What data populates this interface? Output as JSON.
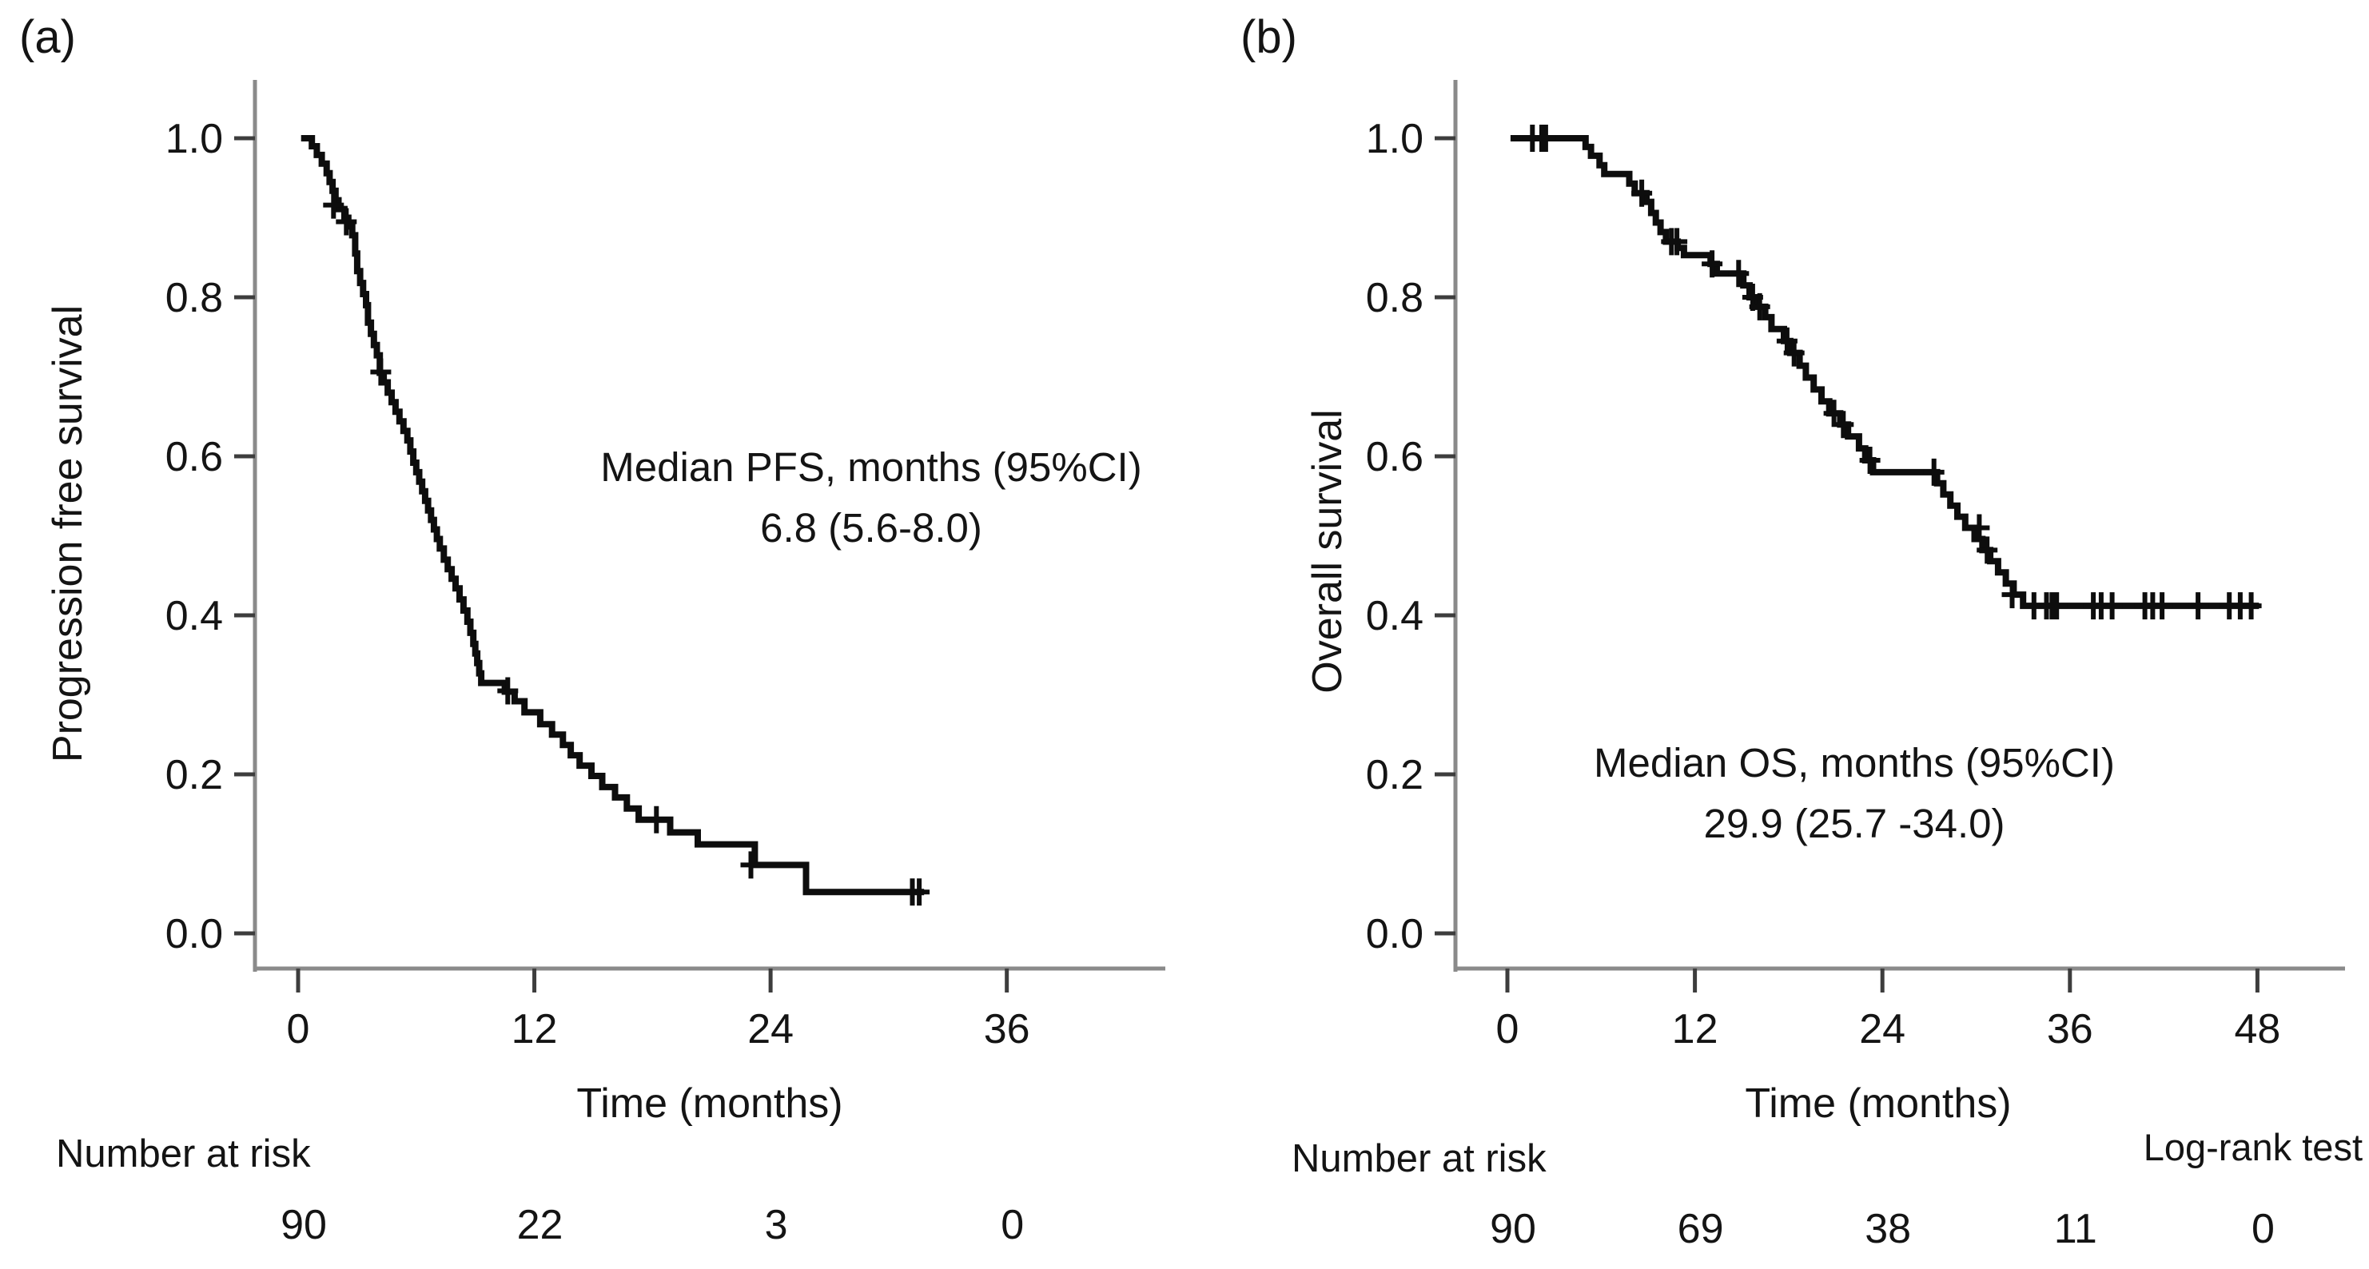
{
  "figure": {
    "background": "#ffffff",
    "text_color": "#141414",
    "curve_color": "#0d0d0d",
    "axis_color": "#8a8a8a",
    "tick_color": "#3d3d3d"
  },
  "chart_data": [
    {
      "type": "line",
      "subtype": "kaplan-meier-step",
      "panel": "a",
      "panel_label": "(a)",
      "ylabel": "Progression free survival",
      "xlabel": "Time (months)",
      "xlim": [
        0,
        44
      ],
      "ylim": [
        0.0,
        1.0
      ],
      "xticks": [
        0,
        12,
        24,
        36
      ],
      "yticks": [
        1.0,
        0.8,
        0.6,
        0.4,
        0.2,
        0.0
      ],
      "grid": false,
      "legend": "none",
      "annotation": {
        "line1": "Median PFS, months (95%CI)",
        "line2": "6.8 (5.6-8.0)"
      },
      "median_months": 6.8,
      "ci_95": "5.6-8.0",
      "number_at_risk": {
        "label": "Number at risk",
        "times": [
          0,
          12,
          24,
          36
        ],
        "counts": [
          90,
          22,
          3,
          0
        ]
      },
      "end_time": 31.8,
      "steps": [
        [
          0.15,
          1.0
        ],
        [
          0.7,
          0.99
        ],
        [
          0.95,
          0.979
        ],
        [
          1.2,
          0.968
        ],
        [
          1.45,
          0.956
        ],
        [
          1.6,
          0.945
        ],
        [
          1.75,
          0.934
        ],
        [
          1.9,
          0.922
        ],
        [
          2.05,
          0.911
        ],
        [
          2.35,
          0.9
        ],
        [
          2.55,
          0.889
        ],
        [
          2.75,
          0.878
        ],
        [
          2.9,
          0.855
        ],
        [
          3.0,
          0.833
        ],
        [
          3.15,
          0.818
        ],
        [
          3.3,
          0.804
        ],
        [
          3.45,
          0.79
        ],
        [
          3.55,
          0.768
        ],
        [
          3.7,
          0.754
        ],
        [
          3.85,
          0.74
        ],
        [
          4.0,
          0.727
        ],
        [
          4.15,
          0.705
        ],
        [
          4.35,
          0.693
        ],
        [
          4.55,
          0.68
        ],
        [
          4.75,
          0.668
        ],
        [
          4.95,
          0.656
        ],
        [
          5.15,
          0.644
        ],
        [
          5.35,
          0.632
        ],
        [
          5.55,
          0.62
        ],
        [
          5.7,
          0.606
        ],
        [
          5.85,
          0.592
        ],
        [
          6.0,
          0.58
        ],
        [
          6.15,
          0.568
        ],
        [
          6.3,
          0.556
        ],
        [
          6.45,
          0.544
        ],
        [
          6.6,
          0.532
        ],
        [
          6.75,
          0.52
        ],
        [
          6.9,
          0.508
        ],
        [
          7.05,
          0.496
        ],
        [
          7.2,
          0.484
        ],
        [
          7.4,
          0.47
        ],
        [
          7.6,
          0.458
        ],
        [
          7.8,
          0.446
        ],
        [
          8.0,
          0.434
        ],
        [
          8.2,
          0.42
        ],
        [
          8.4,
          0.406
        ],
        [
          8.6,
          0.392
        ],
        [
          8.75,
          0.378
        ],
        [
          8.9,
          0.364
        ],
        [
          9.0,
          0.352
        ],
        [
          9.1,
          0.34
        ],
        [
          9.2,
          0.327
        ],
        [
          9.3,
          0.315
        ],
        [
          10.5,
          0.304
        ],
        [
          11.0,
          0.292
        ],
        [
          11.5,
          0.278
        ],
        [
          12.3,
          0.263
        ],
        [
          12.9,
          0.25
        ],
        [
          13.45,
          0.237
        ],
        [
          13.85,
          0.224
        ],
        [
          14.3,
          0.211
        ],
        [
          14.9,
          0.198
        ],
        [
          15.45,
          0.184
        ],
        [
          16.1,
          0.171
        ],
        [
          16.7,
          0.157
        ],
        [
          17.3,
          0.143
        ],
        [
          18.9,
          0.127
        ],
        [
          20.3,
          0.112
        ],
        [
          23.2,
          0.086
        ],
        [
          25.8,
          0.052
        ]
      ],
      "censors": [
        [
          1.8,
          0.916
        ],
        [
          2.45,
          0.895
        ],
        [
          4.2,
          0.706
        ],
        [
          10.65,
          0.305
        ],
        [
          18.2,
          0.143
        ],
        [
          23.0,
          0.086
        ],
        [
          31.2,
          0.052
        ],
        [
          31.55,
          0.052
        ]
      ]
    },
    {
      "type": "line",
      "subtype": "kaplan-meier-step",
      "panel": "b",
      "panel_label": "(b)",
      "ylabel": "Overall survival",
      "xlabel": "Time (months)",
      "xlim": [
        0,
        54
      ],
      "ylim": [
        0.0,
        1.0
      ],
      "xticks": [
        0,
        12,
        24,
        36,
        48
      ],
      "yticks": [
        1.0,
        0.8,
        0.6,
        0.4,
        0.2,
        0.0
      ],
      "grid": false,
      "legend": "none",
      "annotation": {
        "line1": "Median OS, months (95%CI)",
        "line2": "29.9 (25.7 -34.0)"
      },
      "median_months": 29.9,
      "ci_95": "25.7-34.0",
      "log_rank_label": "Log-rank test",
      "number_at_risk": {
        "label": "Number at risk",
        "times": [
          0,
          12,
          24,
          36,
          48
        ],
        "counts": [
          90,
          69,
          38,
          11,
          0
        ]
      },
      "end_time": 48.1,
      "steps": [
        [
          0.2,
          1.0
        ],
        [
          5.0,
          0.989
        ],
        [
          5.35,
          0.978
        ],
        [
          5.9,
          0.966
        ],
        [
          6.2,
          0.955
        ],
        [
          7.8,
          0.943
        ],
        [
          8.15,
          0.931
        ],
        [
          8.9,
          0.92
        ],
        [
          9.2,
          0.906
        ],
        [
          9.5,
          0.894
        ],
        [
          9.8,
          0.882
        ],
        [
          10.15,
          0.87
        ],
        [
          10.9,
          0.862
        ],
        [
          11.3,
          0.853
        ],
        [
          13.0,
          0.842
        ],
        [
          13.4,
          0.83
        ],
        [
          15.1,
          0.815
        ],
        [
          15.5,
          0.8
        ],
        [
          15.9,
          0.788
        ],
        [
          16.5,
          0.775
        ],
        [
          16.9,
          0.76
        ],
        [
          17.7,
          0.745
        ],
        [
          18.1,
          0.73
        ],
        [
          18.7,
          0.714
        ],
        [
          19.1,
          0.699
        ],
        [
          19.6,
          0.684
        ],
        [
          20.1,
          0.669
        ],
        [
          20.6,
          0.654
        ],
        [
          21.3,
          0.64
        ],
        [
          21.8,
          0.625
        ],
        [
          22.5,
          0.61
        ],
        [
          22.9,
          0.595
        ],
        [
          23.4,
          0.58
        ],
        [
          27.5,
          0.566
        ],
        [
          27.9,
          0.552
        ],
        [
          28.35,
          0.538
        ],
        [
          28.8,
          0.524
        ],
        [
          29.3,
          0.51
        ],
        [
          29.9,
          0.496
        ],
        [
          30.4,
          0.482
        ],
        [
          30.9,
          0.468
        ],
        [
          31.4,
          0.454
        ],
        [
          31.9,
          0.44
        ],
        [
          32.4,
          0.426
        ],
        [
          33.0,
          0.412
        ]
      ],
      "censors": [
        [
          1.6,
          1.0
        ],
        [
          2.2,
          1.0
        ],
        [
          2.45,
          1.0
        ],
        [
          8.6,
          0.931
        ],
        [
          10.5,
          0.87
        ],
        [
          10.85,
          0.87
        ],
        [
          13.1,
          0.842
        ],
        [
          14.8,
          0.83
        ],
        [
          15.7,
          0.8
        ],
        [
          16.15,
          0.788
        ],
        [
          17.9,
          0.745
        ],
        [
          18.35,
          0.73
        ],
        [
          20.9,
          0.654
        ],
        [
          21.5,
          0.64
        ],
        [
          23.2,
          0.595
        ],
        [
          27.3,
          0.58
        ],
        [
          30.2,
          0.51
        ],
        [
          30.7,
          0.482
        ],
        [
          32.3,
          0.426
        ],
        [
          33.7,
          0.412
        ],
        [
          34.5,
          0.412
        ],
        [
          34.85,
          0.412
        ],
        [
          35.15,
          0.412
        ],
        [
          37.5,
          0.412
        ],
        [
          38.0,
          0.412
        ],
        [
          38.7,
          0.412
        ],
        [
          40.8,
          0.412
        ],
        [
          41.3,
          0.412
        ],
        [
          41.9,
          0.412
        ],
        [
          44.2,
          0.412
        ],
        [
          46.2,
          0.412
        ],
        [
          46.9,
          0.412
        ],
        [
          47.6,
          0.412
        ]
      ]
    }
  ]
}
